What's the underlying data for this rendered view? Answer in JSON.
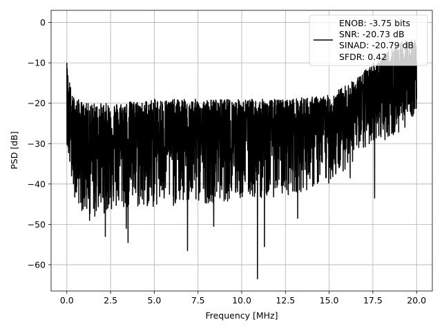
{
  "chart_data": {
    "type": "line",
    "xlabel": "Frequency [MHz]",
    "ylabel": "PSD [dB]",
    "xlim": [
      -0.9,
      20.9
    ],
    "ylim": [
      -66.5,
      3
    ],
    "xticks": [
      0.0,
      2.5,
      5.0,
      7.5,
      10.0,
      12.5,
      15.0,
      17.5,
      20.0
    ],
    "xtick_labels": [
      "0.0",
      "2.5",
      "5.0",
      "7.5",
      "10.0",
      "12.5",
      "15.0",
      "17.5",
      "20.0"
    ],
    "yticks": [
      0,
      -10,
      -20,
      -30,
      -40,
      -50,
      -60
    ],
    "ytick_labels": [
      "0",
      "−10",
      "−20",
      "−30",
      "−40",
      "−50",
      "−60"
    ],
    "grid": true,
    "legend_position": "top-right",
    "series": [
      {
        "color": "#000000",
        "x_range": [
          0,
          20
        ],
        "legend_lines": [
          "ENOB: -3.75 bits",
          "SNR: -20.73 dB",
          "SINAD: -20.79 dB",
          "SFDR: 0.42"
        ],
        "envelope": [
          {
            "x": 0.0,
            "max": -10,
            "typ": -22,
            "min": -30
          },
          {
            "x": 0.3,
            "max": -18,
            "typ": -28,
            "min": -42
          },
          {
            "x": 1.0,
            "max": -20,
            "typ": -29,
            "min": -48
          },
          {
            "x": 2.5,
            "max": -20,
            "typ": -29,
            "min": -47
          },
          {
            "x": 5.0,
            "max": -19,
            "typ": -28,
            "min": -46
          },
          {
            "x": 7.5,
            "max": -19,
            "typ": -28,
            "min": -45
          },
          {
            "x": 10.0,
            "max": -19,
            "typ": -28,
            "min": -44
          },
          {
            "x": 12.5,
            "max": -19,
            "typ": -27,
            "min": -43
          },
          {
            "x": 15.0,
            "max": -18,
            "typ": -26,
            "min": -40
          },
          {
            "x": 16.5,
            "max": -14,
            "typ": -22,
            "min": -34
          },
          {
            "x": 17.5,
            "max": -10,
            "typ": -18,
            "min": -30
          },
          {
            "x": 19.0,
            "max": -5,
            "typ": -15,
            "min": -28
          },
          {
            "x": 20.0,
            "max": -4,
            "typ": -14,
            "min": -22
          }
        ],
        "notable_dips": [
          {
            "x": 0.55,
            "y": -42
          },
          {
            "x": 1.3,
            "y": -49
          },
          {
            "x": 1.6,
            "y": -48
          },
          {
            "x": 2.2,
            "y": -53
          },
          {
            "x": 3.4,
            "y": -51
          },
          {
            "x": 3.5,
            "y": -54.5
          },
          {
            "x": 4.4,
            "y": -45
          },
          {
            "x": 6.9,
            "y": -56.5
          },
          {
            "x": 8.4,
            "y": -50.5
          },
          {
            "x": 10.9,
            "y": -63.5
          },
          {
            "x": 11.3,
            "y": -55.5
          },
          {
            "x": 13.2,
            "y": -48.5
          },
          {
            "x": 16.2,
            "y": -38.5
          },
          {
            "x": 17.6,
            "y": -43.5
          }
        ]
      }
    ]
  }
}
